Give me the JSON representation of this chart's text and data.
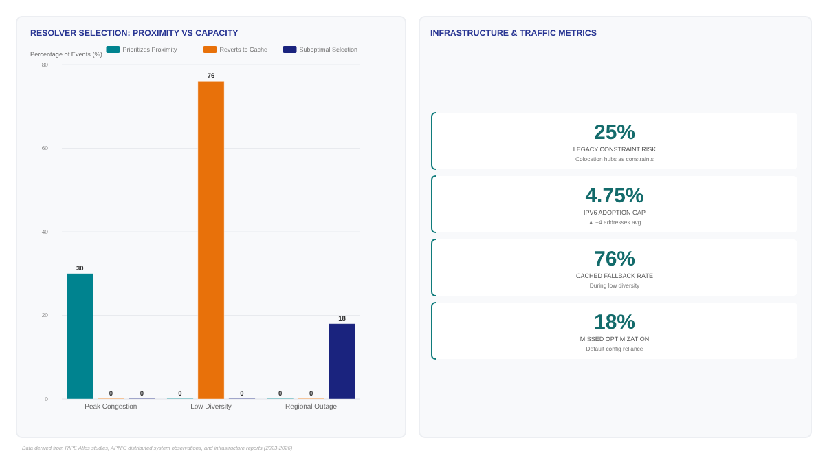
{
  "chart_data": [
    {
      "type": "bar",
      "title": "RESOLVER SELECTION: PROXIMITY VS CAPACITY",
      "ylabel": "Percentage of Events (%)",
      "categories": [
        "Peak Congestion",
        "Low Diversity",
        "Regional Outage"
      ],
      "series": [
        {
          "name": "Prioritizes Proximity",
          "color": "#00838f",
          "values": [
            30,
            0,
            0
          ]
        },
        {
          "name": "Reverts to Cache",
          "color": "#e8710a",
          "values": [
            0,
            76,
            0
          ]
        },
        {
          "name": "Suboptimal Selection",
          "color": "#1a237e",
          "values": [
            0,
            0,
            18
          ]
        }
      ],
      "ylim": [
        0,
        80
      ],
      "yticks": [
        0,
        20,
        40,
        60,
        80
      ],
      "grid": "y",
      "legend": "top",
      "data_labels": true,
      "annotations": [
        "Data derived from RIPE Atlas studies, APNIC distributed system observations, and infrastructure reports (2023-2026)"
      ]
    },
    {
      "type": "other",
      "title": "INFRASTRUCTURE & TRAFFIC METRICS",
      "annotations": [
        "25%",
        "LEGACY CONSTRAINT RISK",
        "Colocation hubs as constraints",
        "4.75%",
        "IPV6 ADOPTION GAP",
        "▲ +4 addresses avg",
        "76%",
        "CACHED FALLBACK RATE",
        "During low diversity",
        "18%",
        "MISSED OPTIMIZATION",
        "Default config reliance"
      ]
    }
  ]
}
